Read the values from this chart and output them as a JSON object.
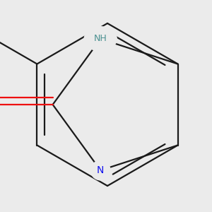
{
  "bg_color": "#ebebeb",
  "bond_color": "#1a1a1a",
  "bond_width": 1.6,
  "atom_colors": {
    "N_blue": "#1010ee",
    "N_H": "#4a9090",
    "O": "#ee1010",
    "S": "#b8900a",
    "Cl": "#22aa22"
  },
  "font_size": 10,
  "fig_size": [
    3.0,
    3.0
  ],
  "dpi": 100
}
